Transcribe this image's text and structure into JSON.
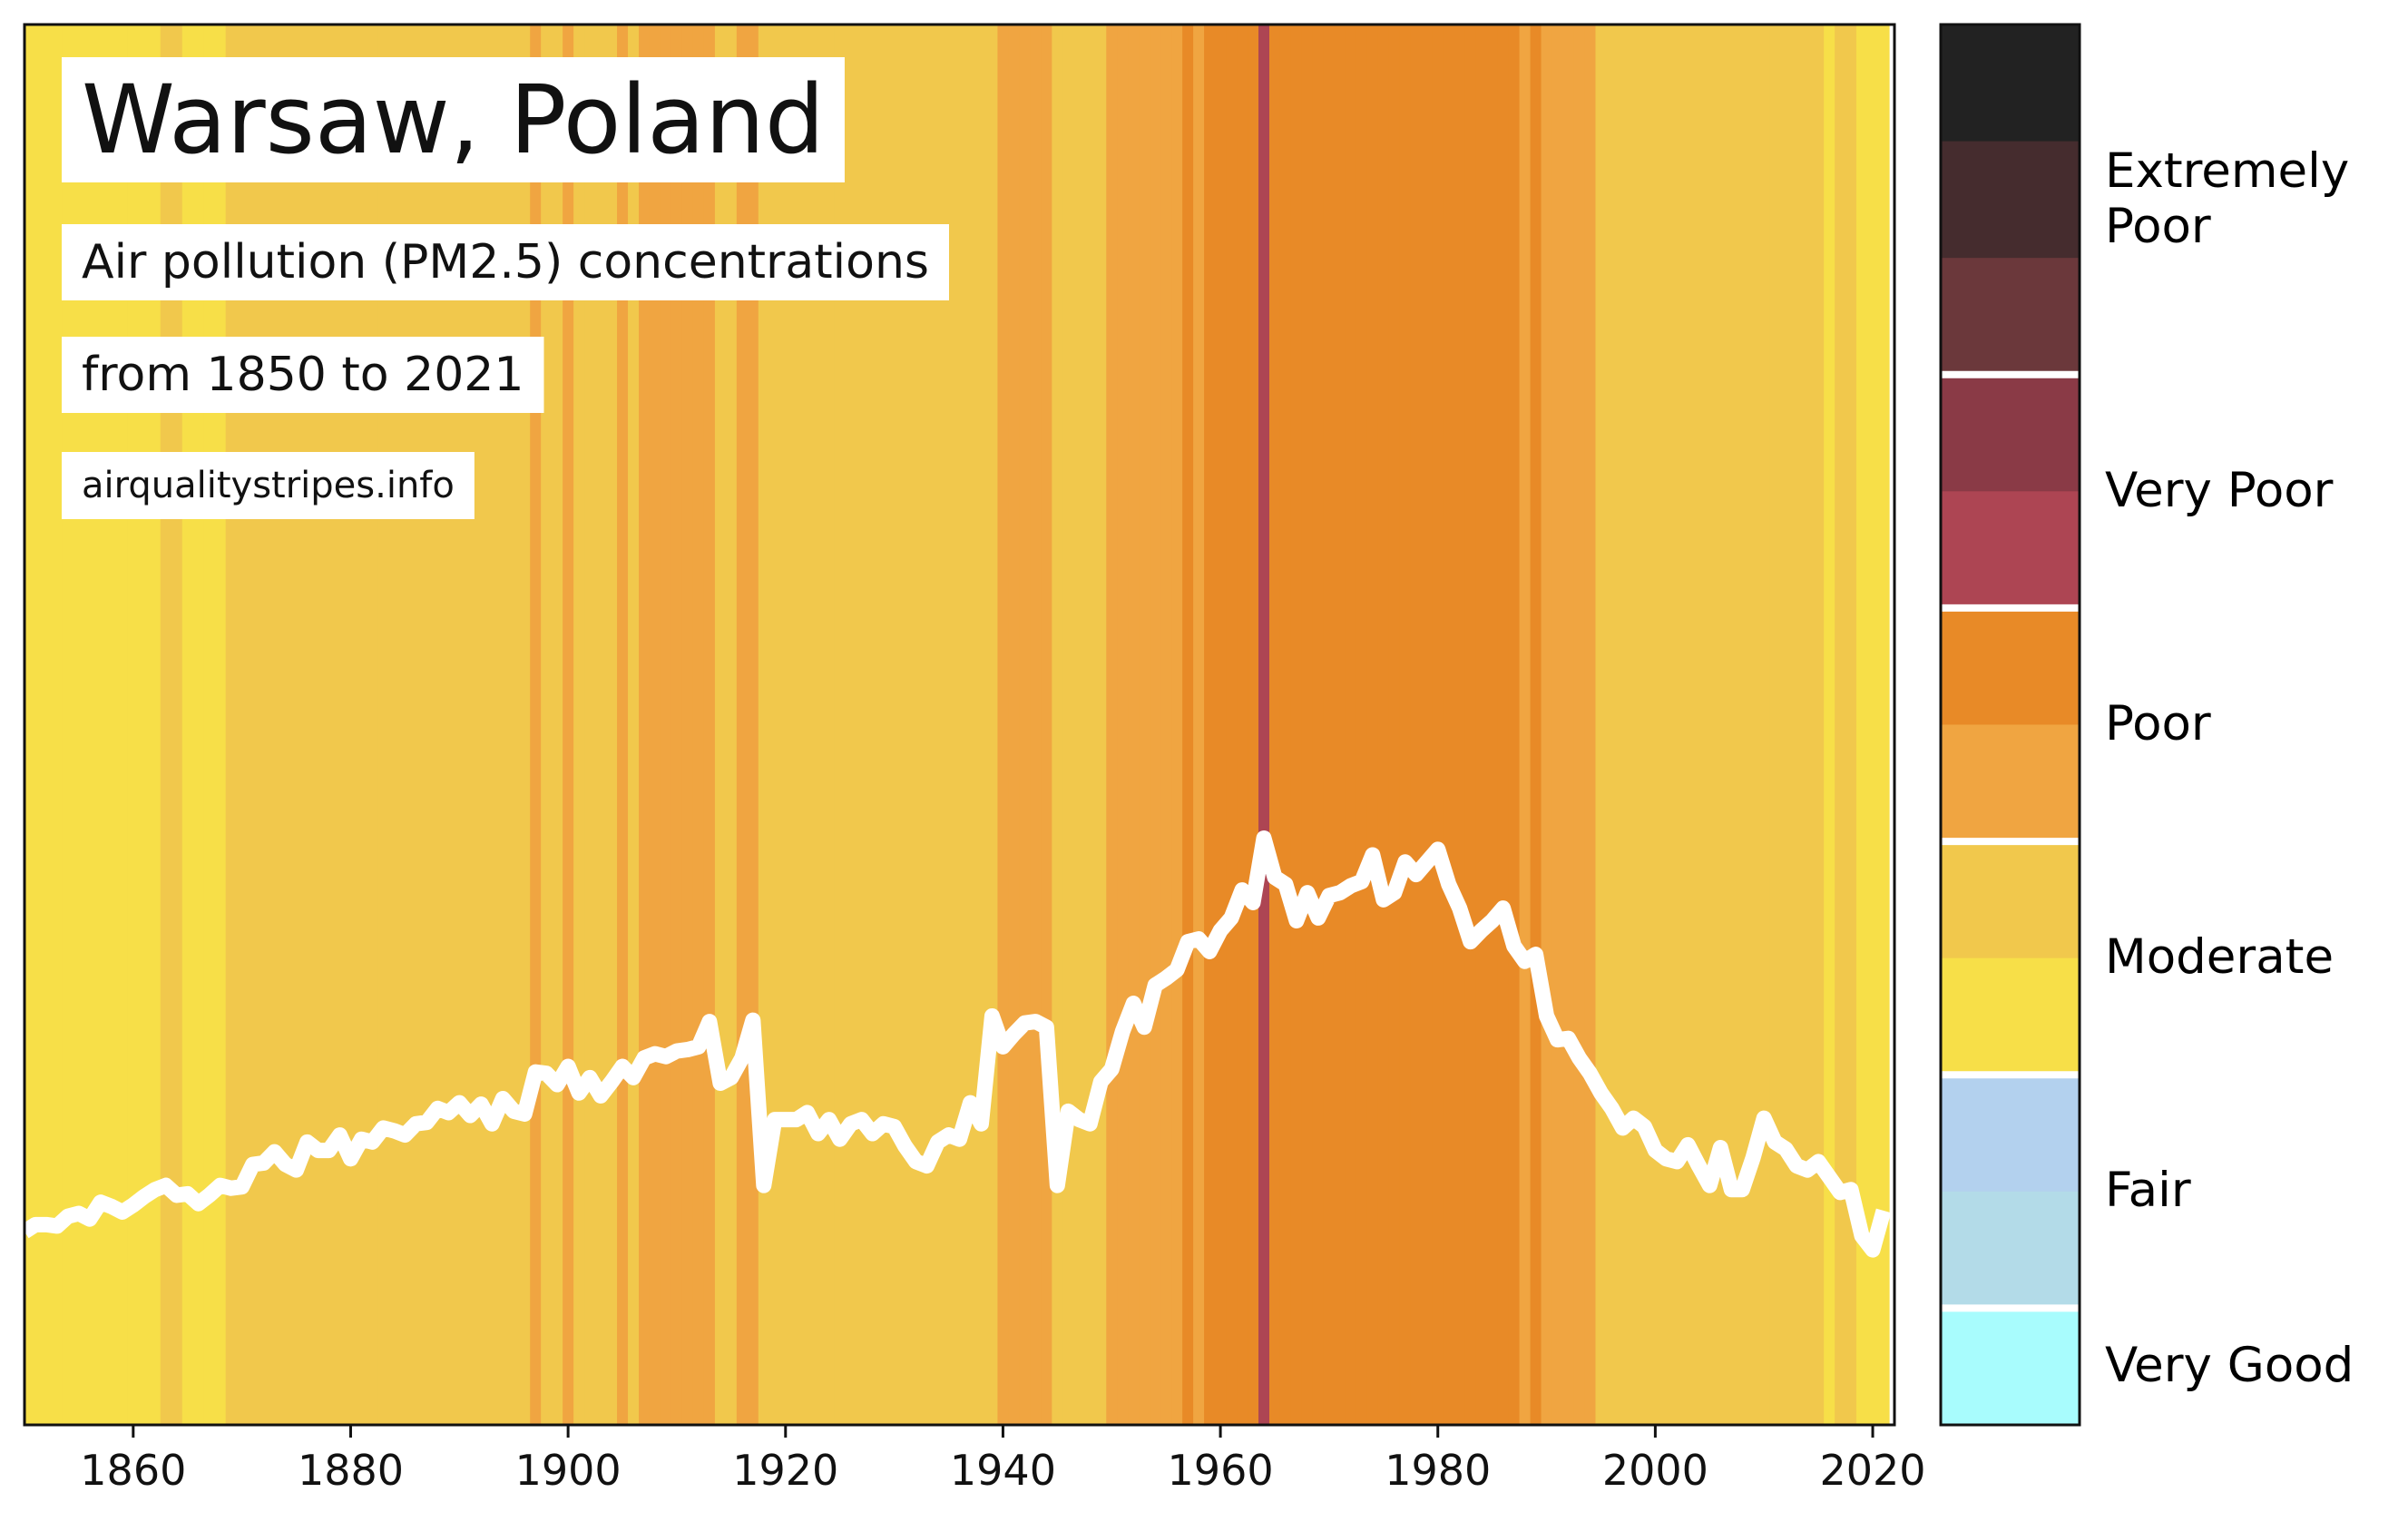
{
  "chart_data": {
    "type": "stripes",
    "title": "Warsaw, Poland",
    "subtitle": [
      "Air pollution (PM2.5) concentrations",
      "from 1850 to 2021"
    ],
    "source": "airqualitystripes.info",
    "x": [
      1850,
      1851,
      1852,
      1853,
      1854,
      1855,
      1856,
      1857,
      1858,
      1859,
      1860,
      1861,
      1862,
      1863,
      1864,
      1865,
      1866,
      1867,
      1868,
      1869,
      1870,
      1871,
      1872,
      1873,
      1874,
      1875,
      1876,
      1877,
      1878,
      1879,
      1880,
      1881,
      1882,
      1883,
      1884,
      1885,
      1886,
      1887,
      1888,
      1889,
      1890,
      1891,
      1892,
      1893,
      1894,
      1895,
      1896,
      1897,
      1898,
      1899,
      1900,
      1901,
      1902,
      1903,
      1904,
      1905,
      1906,
      1907,
      1908,
      1909,
      1910,
      1911,
      1912,
      1913,
      1914,
      1915,
      1916,
      1917,
      1918,
      1919,
      1920,
      1921,
      1922,
      1923,
      1924,
      1925,
      1926,
      1927,
      1928,
      1929,
      1930,
      1931,
      1932,
      1933,
      1934,
      1935,
      1936,
      1937,
      1938,
      1939,
      1940,
      1941,
      1942,
      1943,
      1944,
      1945,
      1946,
      1947,
      1948,
      1949,
      1950,
      1951,
      1952,
      1953,
      1954,
      1955,
      1956,
      1957,
      1958,
      1959,
      1960,
      1961,
      1962,
      1963,
      1964,
      1965,
      1966,
      1967,
      1968,
      1969,
      1970,
      1971,
      1972,
      1973,
      1974,
      1975,
      1976,
      1977,
      1978,
      1979,
      1980,
      1981,
      1982,
      1983,
      1984,
      1985,
      1986,
      1987,
      1988,
      1989,
      1990,
      1991,
      1992,
      1993,
      1994,
      1995,
      1996,
      1997,
      1998,
      1999,
      2000,
      2001,
      2002,
      2003,
      2004,
      2005,
      2006,
      2007,
      2008,
      2009,
      2010,
      2011,
      2012,
      2013,
      2014,
      2015,
      2016,
      2017,
      2018,
      2019,
      2020,
      2021
    ],
    "series": [
      {
        "color": "#ffffff",
        "values": [
          13.8,
          14.3,
          14.3,
          14.2,
          14.9,
          15.1,
          14.7,
          15.9,
          15.6,
          15.2,
          15.7,
          16.3,
          16.8,
          17.1,
          16.4,
          16.5,
          15.8,
          16.4,
          17.1,
          16.9,
          17.0,
          18.6,
          18.7,
          19.5,
          18.6,
          18.2,
          20.2,
          19.6,
          19.6,
          20.7,
          19.0,
          20.4,
          20.2,
          21.2,
          21.0,
          20.7,
          21.5,
          21.6,
          22.6,
          22.3,
          23.0,
          22.1,
          22.9,
          21.5,
          23.3,
          22.4,
          22.2,
          25.2,
          25.1,
          24.3,
          25.6,
          23.7,
          24.8,
          23.5,
          24.5,
          25.6,
          24.8,
          26.2,
          26.5,
          26.3,
          26.7,
          26.8,
          27.0,
          28.8,
          24.4,
          24.8,
          26.2,
          28.9,
          17.1,
          21.8,
          21.8,
          21.8,
          22.3,
          20.8,
          21.8,
          20.4,
          21.5,
          21.8,
          20.8,
          21.5,
          21.3,
          19.9,
          18.8,
          18.5,
          20.2,
          20.7,
          20.4,
          23.0,
          21.5,
          29.2,
          27.0,
          27.9,
          28.7,
          28.8,
          28.4,
          17.1,
          22.4,
          21.8,
          21.5,
          24.5,
          25.4,
          28.1,
          30.1,
          28.4,
          31.4,
          31.9,
          32.5,
          34.5,
          34.7,
          33.8,
          35.3,
          36.2,
          38.2,
          37.3,
          41.9,
          39.1,
          38.6,
          36.0,
          38.0,
          36.2,
          37.8,
          38.0,
          38.5,
          38.8,
          40.7,
          37.5,
          38.0,
          40.2,
          39.3,
          40.2,
          41.1,
          38.6,
          36.9,
          34.5,
          35.3,
          36.0,
          36.9,
          34.2,
          33.1,
          33.6,
          29.2,
          27.5,
          27.6,
          26.2,
          25.1,
          23.7,
          22.6,
          21.2,
          21.9,
          21.3,
          19.6,
          19.0,
          18.8,
          20.0,
          18.5,
          17.1,
          19.8,
          16.8,
          16.8,
          19.1,
          21.9,
          20.2,
          19.7,
          18.5,
          18.2,
          18.8,
          17.7,
          16.6,
          16.8,
          13.5,
          12.5,
          15.3
        ]
      }
    ],
    "stripe_colors": [
      "#f7df48",
      "#f7df48",
      "#f7df48",
      "#f7df48",
      "#f7df48",
      "#f7df48",
      "#f7df48",
      "#f7df48",
      "#f7df48",
      "#f7df48",
      "#f7df48",
      "#f7df48",
      "#f7df48",
      "#f1c84c",
      "#f1c84c",
      "#f7df48",
      "#f7df48",
      "#f7df48",
      "#f7df48",
      "#f1c84c",
      "#f1c84c",
      "#f1c84c",
      "#f1c84c",
      "#f1c84c",
      "#f1c84c",
      "#f1c84c",
      "#f1c84c",
      "#f1c84c",
      "#f1c84c",
      "#f1c84c",
      "#f1c84c",
      "#f1c84c",
      "#f1c84c",
      "#f1c84c",
      "#f1c84c",
      "#f1c84c",
      "#f1c84c",
      "#f1c84c",
      "#f1c84c",
      "#f1c84c",
      "#f1c84c",
      "#f1c84c",
      "#f1c84c",
      "#f1c84c",
      "#f1c84c",
      "#f1c84c",
      "#f1c84c",
      "#f0a541",
      "#f1c84c",
      "#f1c84c",
      "#f0a541",
      "#f1c84c",
      "#f1c84c",
      "#f1c84c",
      "#f1c84c",
      "#f0a541",
      "#f1c84c",
      "#f0a541",
      "#f0a541",
      "#f0a541",
      "#f0a541",
      "#f0a541",
      "#f0a541",
      "#f0a541",
      "#f1c84c",
      "#f1c84c",
      "#f0a541",
      "#f0a541",
      "#f1c84c",
      "#f1c84c",
      "#f1c84c",
      "#f1c84c",
      "#f1c84c",
      "#f1c84c",
      "#f1c84c",
      "#f1c84c",
      "#f1c84c",
      "#f1c84c",
      "#f1c84c",
      "#f1c84c",
      "#f1c84c",
      "#f1c84c",
      "#f1c84c",
      "#f1c84c",
      "#f1c84c",
      "#f1c84c",
      "#f1c84c",
      "#f1c84c",
      "#f1c84c",
      "#f1c84c",
      "#f0a541",
      "#f0a541",
      "#f0a541",
      "#f0a541",
      "#f0a541",
      "#f1c84c",
      "#f1c84c",
      "#f1c84c",
      "#f1c84c",
      "#f1c84c",
      "#f0a541",
      "#f0a541",
      "#f0a541",
      "#f0a541",
      "#f0a541",
      "#f0a541",
      "#f0a541",
      "#e88a27",
      "#f0a541",
      "#e88a27",
      "#e88a27",
      "#e88a27",
      "#e88a27",
      "#e88a27",
      "#ad4553",
      "#e88a27",
      "#e88a27",
      "#e88a27",
      "#e88a27",
      "#e88a27",
      "#e88a27",
      "#e88a27",
      "#e88a27",
      "#e88a27",
      "#e88a27",
      "#e88a27",
      "#e88a27",
      "#e88a27",
      "#e88a27",
      "#e88a27",
      "#e88a27",
      "#e88a27",
      "#e88a27",
      "#e88a27",
      "#e88a27",
      "#e88a27",
      "#e88a27",
      "#e88a27",
      "#f0a541",
      "#e88a27",
      "#f0a541",
      "#f0a541",
      "#f0a541",
      "#f0a541",
      "#f0a541",
      "#f1c84c",
      "#f1c84c",
      "#f1c84c",
      "#f1c84c",
      "#f1c84c",
      "#f1c84c",
      "#f1c84c",
      "#f1c84c",
      "#f1c84c",
      "#f1c84c",
      "#f1c84c",
      "#f1c84c",
      "#f1c84c",
      "#f1c84c",
      "#f1c84c",
      "#f1c84c",
      "#f1c84c",
      "#f1c84c",
      "#f1c84c",
      "#f1c84c",
      "#f1c84c",
      "#f7df48",
      "#f1c84c",
      "#f1c84c",
      "#f7df48",
      "#f7df48",
      "#f7df48"
    ],
    "xlim": [
      1850,
      2022
    ],
    "ylim": [
      0,
      100
    ],
    "xticks": [
      1860,
      1880,
      1900,
      1920,
      1940,
      1960,
      1980,
      2000,
      2020
    ],
    "colorbar": [
      {
        "label": "Extremely Poor",
        "colors": [
          "#222222",
          "#452c2e",
          "#6b383b"
        ]
      },
      {
        "label": "Very Poor",
        "colors": [
          "#8a3a46",
          "#ad4553"
        ]
      },
      {
        "label": "Poor",
        "colors": [
          "#e88a27",
          "#f0a541"
        ]
      },
      {
        "label": "Moderate",
        "colors": [
          "#f1c84c",
          "#f7df48"
        ]
      },
      {
        "label": "Fair",
        "colors": [
          "#b3d1ee",
          "#b3dbe8"
        ]
      },
      {
        "label": "Very Good",
        "colors": [
          "#a8fcfd"
        ]
      }
    ]
  }
}
